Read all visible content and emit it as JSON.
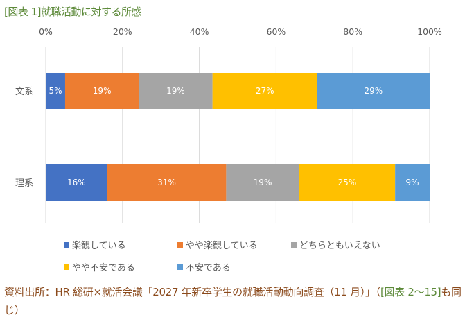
{
  "title": "[図表 1]就職活動に対する所感",
  "footer": {
    "source": "資料出所：HR 総研×就活会議「2027 年新卒学生の就職活動動向調査（11 月）」（",
    "ref": "[図表 2～15]",
    "tail": "も同じ）"
  },
  "chart_data": {
    "type": "bar",
    "orientation": "horizontal-stacked-100",
    "title": "",
    "xlim": [
      0,
      100
    ],
    "xticks": [
      "0%",
      "20%",
      "40%",
      "60%",
      "80%",
      "100%"
    ],
    "grid": true,
    "legend_position": "bottom",
    "categories": [
      "文系",
      "理系"
    ],
    "series": [
      {
        "name": "楽観している",
        "color": "#4472C4",
        "values": [
          5,
          16
        ]
      },
      {
        "name": "やや楽観している",
        "color": "#ED7D31",
        "values": [
          19,
          31
        ]
      },
      {
        "name": "どちらともいえない",
        "color": "#A5A5A5",
        "values": [
          19,
          19
        ]
      },
      {
        "name": "やや不安である",
        "color": "#FFC000",
        "values": [
          27,
          25
        ]
      },
      {
        "name": "不安である",
        "color": "#5B9BD5",
        "values": [
          29,
          9
        ]
      }
    ]
  }
}
